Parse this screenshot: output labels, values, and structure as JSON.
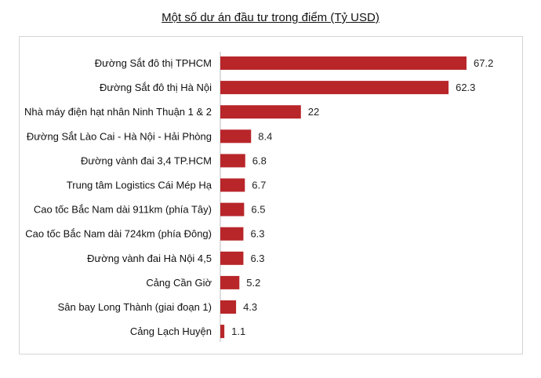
{
  "chart_data": {
    "type": "bar",
    "orientation": "horizontal",
    "title": "Một số dư án đầu tư trong điểm (Tỷ USD)",
    "categories": [
      "Đường Sắt đô thị TPHCM",
      "Đường Sắt đô thị Hà Nội",
      "Nhà máy điện hạt nhân Ninh Thuận 1 & 2",
      "Đường Sắt Lào Cai - Hà Nội - Hải Phòng",
      "Đường vành đai 3,4 TP.HCM",
      "Trung tâm Logistics Cái Mép Hạ",
      "Cao tốc Bắc Nam dài 911km (phía Tây)",
      "Cao tốc Bắc Nam dài 724km (phía Đông)",
      "Đường vành đai Hà Nội 4,5",
      "Cảng Cần Giờ",
      "Sân bay Long Thành (giai đoạn 1)",
      "Cảng Lạch Huyện"
    ],
    "values": [
      67.2,
      62.3,
      22,
      8.4,
      6.8,
      6.7,
      6.5,
      6.3,
      6.3,
      5.2,
      4.3,
      1.1
    ],
    "value_labels": [
      "67.2",
      "62.3",
      "22",
      "8.4",
      "6.8",
      "6.7",
      "6.5",
      "6.3",
      "6.3",
      "5.2",
      "4.3",
      "1.1"
    ],
    "xlim": [
      0,
      67.2
    ],
    "grid": false,
    "legend": "none",
    "bar_color": "#b8262a"
  }
}
